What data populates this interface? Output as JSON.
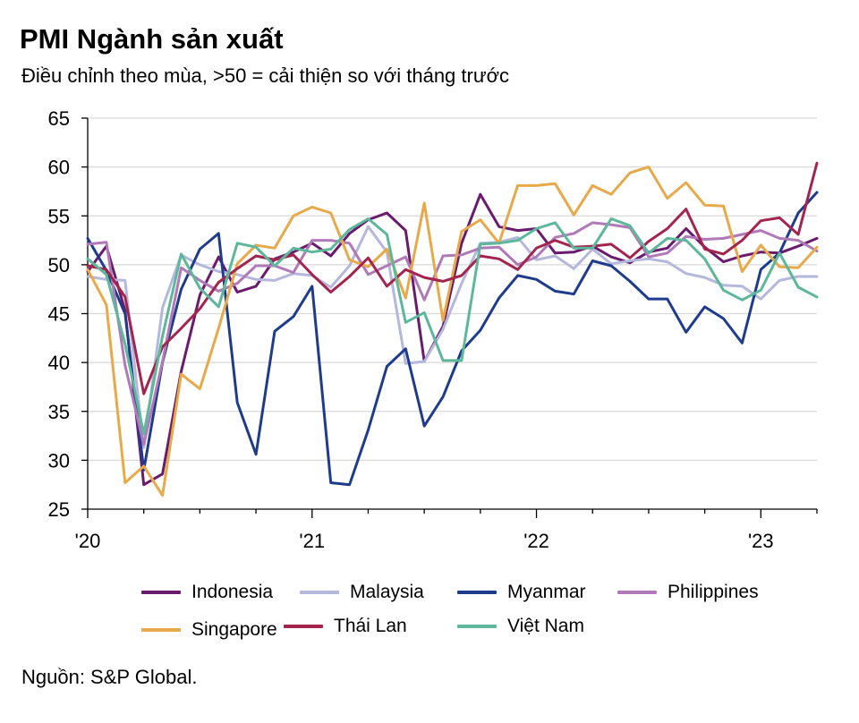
{
  "chart_data": {
    "type": "line",
    "title": "PMI Ngành sản xuất",
    "subtitle": "Điều chỉnh theo mùa, >50 = cải thiện so với tháng trước",
    "source": "Nguồn: S&P Global.",
    "xlabel": "",
    "ylabel": "",
    "ylim": [
      25,
      65
    ],
    "yticks": [
      25,
      30,
      35,
      40,
      45,
      50,
      55,
      60,
      65
    ],
    "xticks": [
      {
        "label": "'20",
        "index": 0
      },
      {
        "label": "'21",
        "index": 12
      },
      {
        "label": "'22",
        "index": 24
      },
      {
        "label": "'23",
        "index": 36
      }
    ],
    "x_months": [
      "2020-01",
      "2020-02",
      "2020-03",
      "2020-04",
      "2020-05",
      "2020-06",
      "2020-07",
      "2020-08",
      "2020-09",
      "2020-10",
      "2020-11",
      "2020-12",
      "2021-01",
      "2021-02",
      "2021-03",
      "2021-04",
      "2021-05",
      "2021-06",
      "2021-07",
      "2021-08",
      "2021-09",
      "2021-10",
      "2021-11",
      "2021-12",
      "2022-01",
      "2022-02",
      "2022-03",
      "2022-04",
      "2022-05",
      "2022-06",
      "2022-07",
      "2022-08",
      "2022-09",
      "2022-10",
      "2022-11",
      "2022-12",
      "2023-01",
      "2023-02",
      "2023-03",
      "2023-04"
    ],
    "grid": true,
    "legend_position": "bottom",
    "series": [
      {
        "name": "Indonesia",
        "color": "#6a1b6e",
        "values": [
          49.3,
          51.9,
          45.3,
          27.5,
          28.6,
          39.1,
          46.9,
          50.8,
          47.2,
          47.8,
          50.6,
          51.3,
          52.2,
          50.9,
          53.2,
          54.6,
          55.3,
          53.5,
          40.1,
          43.7,
          52.2,
          57.2,
          53.9,
          53.5,
          53.7,
          51.2,
          51.3,
          51.9,
          50.8,
          50.2,
          51.3,
          51.7,
          53.7,
          51.8,
          50.3,
          50.9,
          51.3,
          51.2,
          51.9,
          52.7
        ]
      },
      {
        "name": "Malaysia",
        "color": "#b4b8dc",
        "values": [
          48.8,
          48.5,
          48.4,
          31.3,
          45.6,
          51.0,
          50.0,
          49.3,
          49.0,
          48.5,
          48.4,
          49.1,
          48.9,
          47.7,
          49.9,
          53.9,
          51.3,
          39.9,
          40.1,
          43.4,
          48.1,
          52.2,
          52.3,
          52.8,
          50.5,
          50.9,
          49.6,
          51.6,
          50.1,
          50.4,
          50.6,
          50.3,
          49.1,
          48.7,
          47.9,
          47.8,
          46.5,
          48.4,
          48.8,
          48.8
        ]
      },
      {
        "name": "Myanmar",
        "color": "#1f3b8c",
        "values": [
          52.7,
          49.4,
          45.0,
          29.0,
          40.0,
          47.5,
          51.6,
          53.2,
          35.9,
          30.6,
          43.2,
          44.7,
          47.8,
          27.7,
          27.5,
          33.1,
          39.6,
          41.4,
          33.5,
          36.5,
          41.2,
          43.3,
          46.6,
          48.9,
          48.5,
          47.3,
          47.0,
          50.4,
          49.9,
          48.3,
          46.5,
          46.5,
          43.1,
          45.7,
          44.5,
          42.0,
          49.5,
          51.2,
          55.3,
          57.4
        ]
      },
      {
        "name": "Philippines",
        "color": "#b07ab8",
        "values": [
          52.1,
          52.3,
          39.7,
          31.6,
          40.1,
          49.7,
          48.4,
          47.3,
          48.1,
          49.9,
          49.9,
          49.2,
          52.5,
          52.5,
          52.2,
          49.0,
          49.9,
          50.8,
          46.4,
          50.9,
          51.0,
          51.7,
          51.8,
          50.0,
          50.8,
          52.8,
          53.2,
          54.3,
          54.1,
          53.8,
          50.8,
          51.2,
          52.9,
          52.6,
          52.7,
          53.1,
          53.5,
          52.7,
          52.5,
          51.4
        ]
      },
      {
        "name": "Singapore",
        "color": "#e8a94a",
        "values": [
          49.5,
          45.9,
          27.7,
          29.4,
          26.4,
          38.8,
          37.3,
          43.5,
          50.1,
          52.0,
          51.7,
          55.0,
          55.9,
          55.3,
          50.5,
          49.8,
          51.6,
          46.6,
          56.3,
          44.3,
          53.4,
          54.6,
          52.2,
          58.1,
          58.1,
          58.3,
          55.1,
          58.1,
          57.2,
          59.4,
          60.0,
          56.8,
          58.4,
          56.1,
          56.0,
          49.3,
          52.0,
          49.8,
          49.7,
          51.8
        ]
      },
      {
        "name": "Thái Lan",
        "color": "#a3254e",
        "values": [
          49.9,
          49.5,
          46.7,
          36.8,
          41.6,
          43.5,
          45.5,
          48.2,
          49.6,
          50.9,
          50.5,
          51.0,
          49.0,
          47.2,
          48.8,
          50.7,
          47.8,
          49.5,
          48.7,
          48.3,
          48.9,
          50.9,
          50.6,
          49.5,
          51.7,
          52.5,
          51.8,
          51.9,
          52.1,
          50.7,
          52.4,
          53.7,
          55.7,
          51.6,
          51.1,
          52.5,
          54.5,
          54.8,
          53.1,
          60.4
        ]
      },
      {
        "name": "Việt Nam",
        "color": "#5db89b",
        "values": [
          50.6,
          49.0,
          41.9,
          32.7,
          42.7,
          51.1,
          47.6,
          45.7,
          52.2,
          51.8,
          49.9,
          51.7,
          51.3,
          51.6,
          53.6,
          54.7,
          53.1,
          44.1,
          45.1,
          40.2,
          40.2,
          52.1,
          52.2,
          52.5,
          53.7,
          54.3,
          51.7,
          51.7,
          54.7,
          54.0,
          51.2,
          52.7,
          52.5,
          50.6,
          47.4,
          46.4,
          47.4,
          51.2,
          47.7,
          46.7
        ]
      }
    ]
  }
}
